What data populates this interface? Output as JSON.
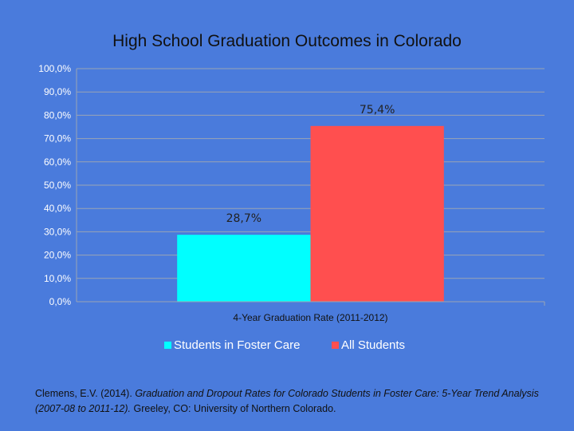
{
  "chart_data": {
    "type": "bar",
    "title": "High School Graduation Outcomes in Colorado",
    "categories": [
      "4-Year Graduation Rate (2011-2012)"
    ],
    "series": [
      {
        "name": "Students in Foster Care",
        "values": [
          28.7
        ],
        "label": "28,7%",
        "color": "#00ffff"
      },
      {
        "name": "All Students",
        "values": [
          75.4
        ],
        "label": "75,4%",
        "color": "#ff4f4f"
      }
    ],
    "ylim": [
      0,
      100
    ],
    "yticks": [
      0,
      10,
      20,
      30,
      40,
      50,
      60,
      70,
      80,
      90,
      100
    ],
    "ytick_labels": [
      "0,0%",
      "10,0%",
      "20,0%",
      "30,0%",
      "40,0%",
      "50,0%",
      "60,0%",
      "70,0%",
      "80,0%",
      "90,0%",
      "100,0%"
    ],
    "grid": true,
    "legend": "bottom"
  },
  "citation": {
    "author": "Clemens, E.V. (2014).",
    "title": "Graduation and Dropout Rates for Colorado Students in Foster Care: 5-Year Trend Analysis (2007-08 to 2011-12).",
    "publisher": "Greeley, CO: University of Northern Colorado."
  }
}
